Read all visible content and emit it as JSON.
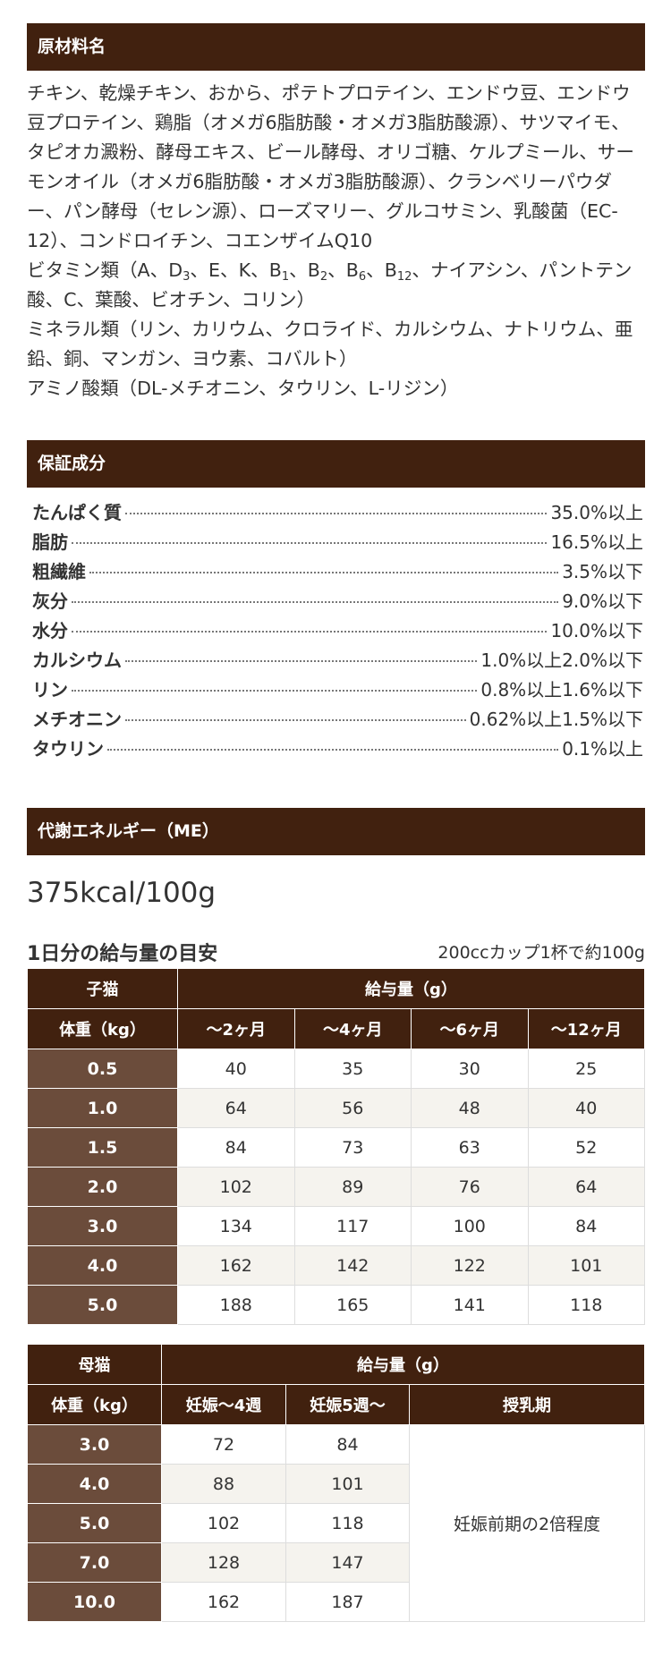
{
  "ingredients": {
    "title": "原材料名",
    "paragraph1": "チキン、乾燥チキン、おから、ポテトプロテイン、エンドウ豆、エンドウ豆プロテイン、鶏脂（オメガ6脂肪酸・オメガ3脂肪酸源）、サツマイモ、タピオカ澱粉、酵母エキス、ビール酵母、オリゴ糖、ケルプミール、サーモンオイル（オメガ6脂肪酸・オメガ3脂肪酸源）、クランベリーパウダー、パン酵母（セレン源）、ローズマリー、グルコサミン、乳酸菌（EC-12）、コンドロイチン、コエンザイムQ10",
    "vitamins": [
      {
        "t": "ビタミン類（A、D"
      },
      {
        "t": "3",
        "sub": true
      },
      {
        "t": "、E、K、B"
      },
      {
        "t": "1",
        "sub": true
      },
      {
        "t": "、B"
      },
      {
        "t": "2",
        "sub": true
      },
      {
        "t": "、B"
      },
      {
        "t": "6",
        "sub": true
      },
      {
        "t": "、B"
      },
      {
        "t": "12",
        "sub": true
      },
      {
        "t": "、ナイアシン、パントテン酸、C、葉酸、ビオチン、コリン）"
      }
    ],
    "minerals": "ミネラル類（リン、カリウム、クロライド、カルシウム、ナトリウム、亜鉛、銅、マンガン、ヨウ素、コバルト）",
    "amino": "アミノ酸類（DL-メチオニン、タウリン、L-リジン）"
  },
  "analysis": {
    "title": "保証成分",
    "rows": [
      {
        "k": "たんぱく質",
        "v": "35.0%以上"
      },
      {
        "k": "脂肪",
        "v": "16.5%以上"
      },
      {
        "k": "粗繊維",
        "v": "3.5%以下"
      },
      {
        "k": "灰分",
        "v": "9.0%以下"
      },
      {
        "k": "水分",
        "v": "10.0%以下"
      },
      {
        "k": "カルシウム",
        "v": "1.0%以上2.0%以下"
      },
      {
        "k": "リン",
        "v": "0.8%以上1.6%以下"
      },
      {
        "k": "メチオニン",
        "v": "0.62%以上1.5%以下"
      },
      {
        "k": "タウリン",
        "v": "0.1%以上"
      }
    ]
  },
  "energy": {
    "title": "代謝エネルギー（ME）",
    "value": "375kcal/100g"
  },
  "feeding": {
    "title": "1日分の給与量の目安",
    "note": "200ccカップ1杯で約100g",
    "kitten": {
      "label": "子猫",
      "amount_header": "給与量（g）",
      "weight_header": "体重（kg）",
      "columns": [
        "〜2ヶ月",
        "〜4ヶ月",
        "〜6ヶ月",
        "〜12ヶ月"
      ],
      "rows": [
        {
          "w": "0.5",
          "v": [
            "40",
            "35",
            "30",
            "25"
          ]
        },
        {
          "w": "1.0",
          "v": [
            "64",
            "56",
            "48",
            "40"
          ]
        },
        {
          "w": "1.5",
          "v": [
            "84",
            "73",
            "63",
            "52"
          ]
        },
        {
          "w": "2.0",
          "v": [
            "102",
            "89",
            "76",
            "64"
          ]
        },
        {
          "w": "3.0",
          "v": [
            "134",
            "117",
            "100",
            "84"
          ]
        },
        {
          "w": "4.0",
          "v": [
            "162",
            "142",
            "122",
            "101"
          ]
        },
        {
          "w": "5.0",
          "v": [
            "188",
            "165",
            "141",
            "118"
          ]
        }
      ]
    },
    "mother": {
      "label": "母猫",
      "amount_header": "給与量（g）",
      "weight_header": "体重（kg）",
      "columns": [
        "妊娠〜4週",
        "妊娠5週〜",
        "授乳期"
      ],
      "lactation": "妊娠前期の2倍程度",
      "rows": [
        {
          "w": "3.0",
          "v": [
            "72",
            "84"
          ]
        },
        {
          "w": "4.0",
          "v": [
            "88",
            "101"
          ]
        },
        {
          "w": "5.0",
          "v": [
            "102",
            "118"
          ]
        },
        {
          "w": "7.0",
          "v": [
            "128",
            "147"
          ]
        },
        {
          "w": "10.0",
          "v": [
            "162",
            "187"
          ]
        }
      ]
    }
  },
  "colors": {
    "header_bg": "#41210f",
    "weight_col_bg": "#6b4c3b",
    "alt_row_bg": "#f5f3ee"
  }
}
